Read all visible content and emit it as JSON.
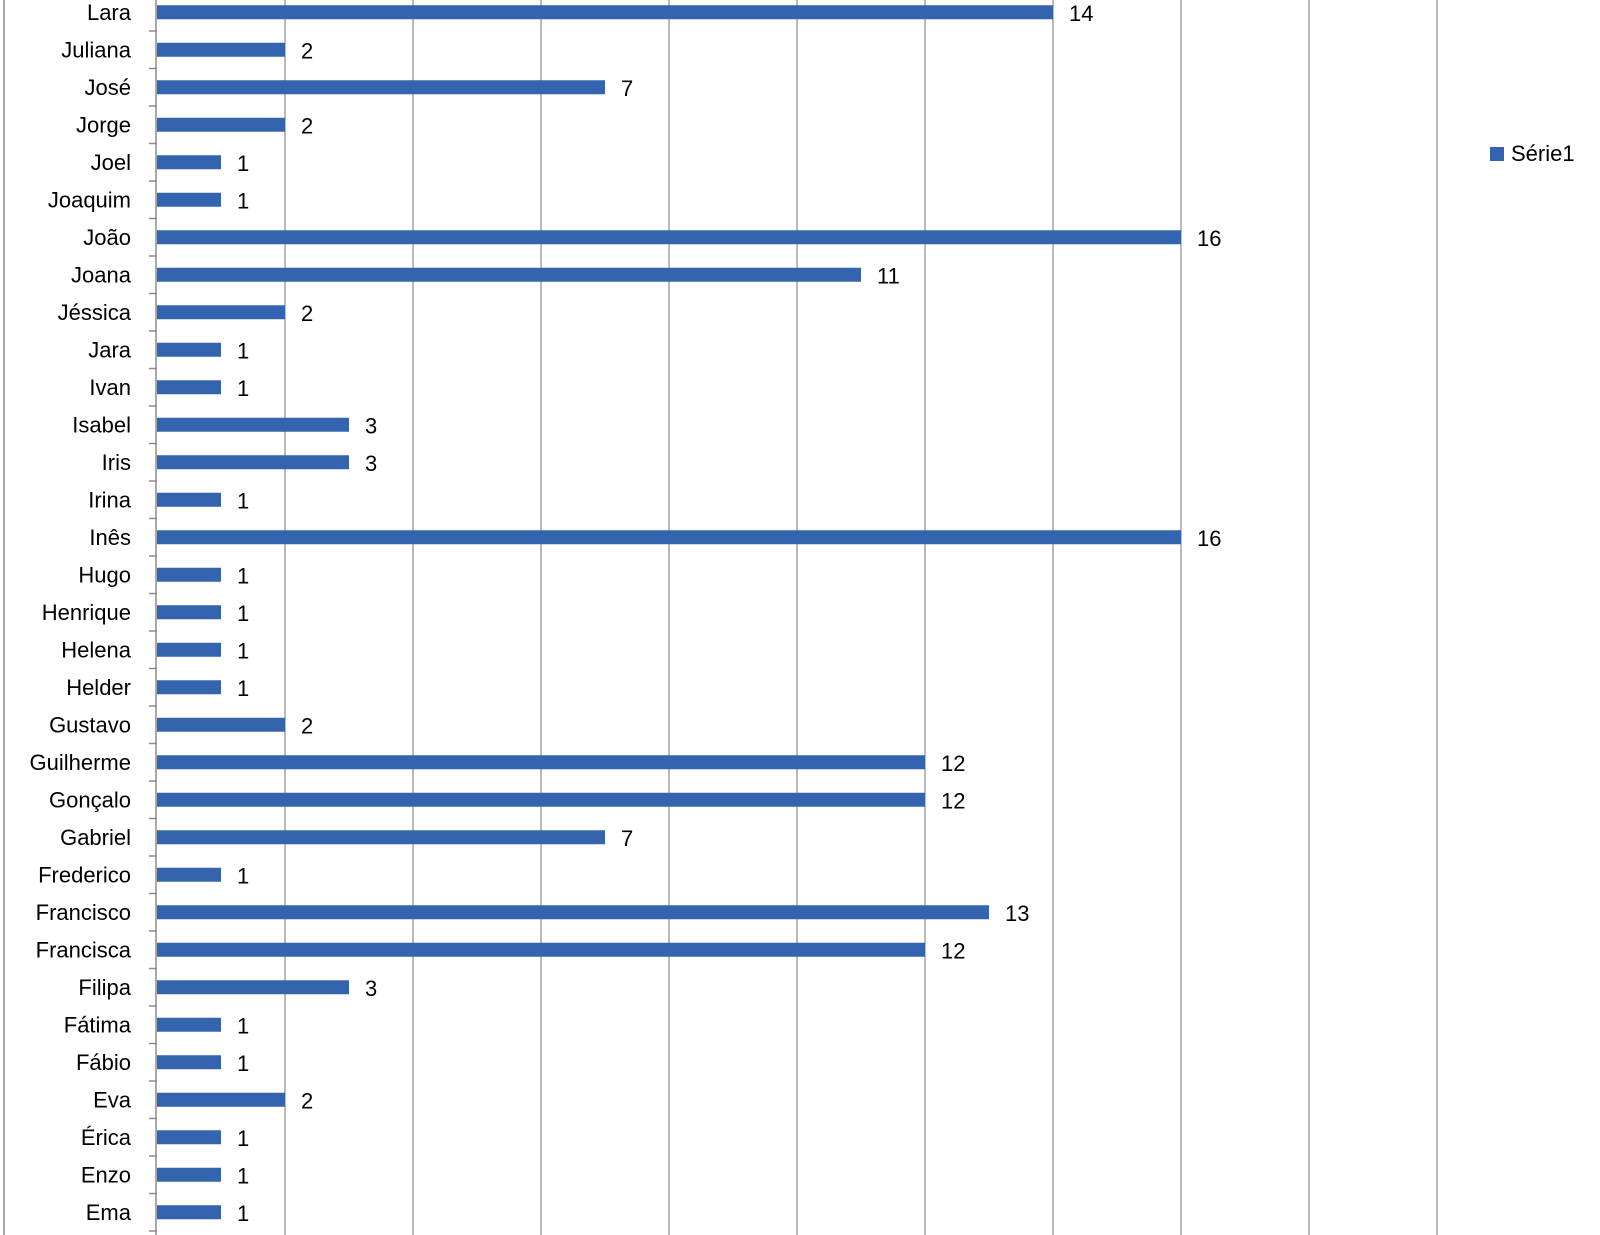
{
  "chart_data": {
    "type": "bar",
    "orientation": "horizontal",
    "categories": [
      "Lara",
      "Juliana",
      "José",
      "Jorge",
      "Joel",
      "Joaquim",
      "João",
      "Joana",
      "Jéssica",
      "Jara",
      "Ivan",
      "Isabel",
      "Iris",
      "Irina",
      "Inês",
      "Hugo",
      "Henrique",
      "Helena",
      "Helder",
      "Gustavo",
      "Guilherme",
      "Gonçalo",
      "Gabriel",
      "Frederico",
      "Francisco",
      "Francisca",
      "Filipa",
      "Fátima",
      "Fábio",
      "Eva",
      "Érica",
      "Enzo",
      "Ema"
    ],
    "series": [
      {
        "name": "Série1",
        "values": [
          14,
          2,
          7,
          2,
          1,
          1,
          16,
          11,
          2,
          1,
          1,
          3,
          3,
          1,
          16,
          1,
          1,
          1,
          1,
          2,
          12,
          12,
          7,
          1,
          13,
          12,
          3,
          1,
          1,
          2,
          1,
          1,
          1
        ]
      }
    ],
    "xlim": [
      0,
      20
    ],
    "gridlines": "vertical",
    "data_labels": true,
    "legend_position": "right",
    "bar_color": "#3464ae",
    "title": "",
    "xlabel": "",
    "ylabel": ""
  }
}
